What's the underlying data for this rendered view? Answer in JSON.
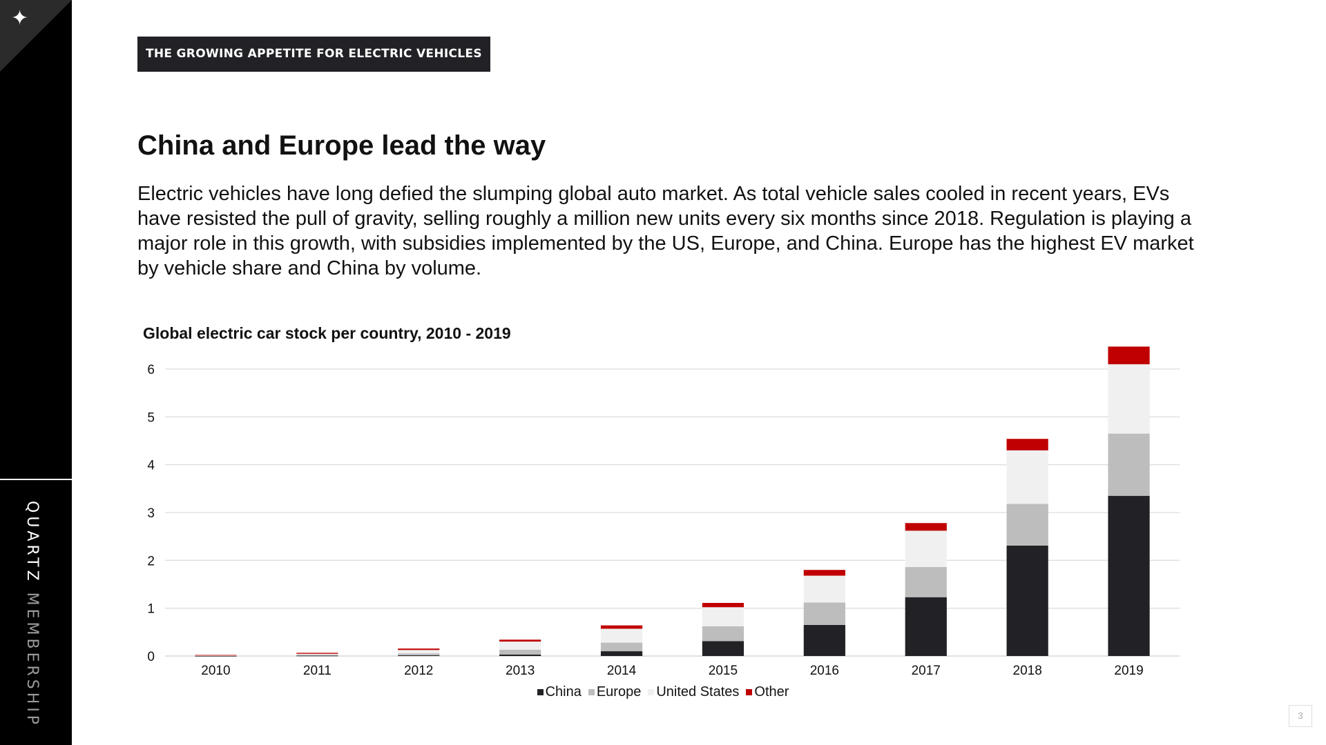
{
  "brand": {
    "logo_icon": "sparkle-icon",
    "name_bold": "QUARTZ",
    "name_light": " MEMBERSHIP"
  },
  "section_tag": "THE GROWING APPETITE FOR ELECTRIC VEHICLES",
  "headline": "China and Europe lead the way",
  "body": "Electric vehicles have long defied the slumping global auto market. As total vehicle sales cooled in recent years, EVs have resisted the pull of gravity, selling roughly a million new units every six months since 2018. Regulation is playing a major role in this growth, with subsidies implemented by the US, Europe, and China. Europe has the highest EV market by vehicle share and China by volume.",
  "page_number": "3",
  "chart_data": {
    "type": "bar",
    "stacked": true,
    "title": "Global electric car stock per country, 2010 - 2019",
    "xlabel": "",
    "ylabel": "",
    "categories": [
      "2010",
      "2011",
      "2012",
      "2013",
      "2014",
      "2015",
      "2016",
      "2017",
      "2018",
      "2019"
    ],
    "ylim": [
      0,
      6
    ],
    "yticks": [
      "0",
      "1",
      "2",
      "3",
      "4",
      "5",
      "6"
    ],
    "grid": true,
    "legend_position": "bottom",
    "series": [
      {
        "name": "China",
        "color": "#222226",
        "values": [
          0.001,
          0.007,
          0.016,
          0.032,
          0.1,
          0.31,
          0.65,
          1.23,
          2.31,
          3.35
        ]
      },
      {
        "name": "Europe",
        "color": "#bdbdbd",
        "values": [
          0.01,
          0.02,
          0.04,
          0.1,
          0.18,
          0.31,
          0.47,
          0.63,
          0.87,
          1.3
        ]
      },
      {
        "name": "United States",
        "color": "#f0f0f0",
        "values": [
          0.004,
          0.02,
          0.07,
          0.17,
          0.29,
          0.4,
          0.56,
          0.76,
          1.12,
          1.45
        ]
      },
      {
        "name": "Other",
        "color": "#c00000",
        "values": [
          0.007,
          0.02,
          0.03,
          0.04,
          0.07,
          0.09,
          0.12,
          0.16,
          0.24,
          0.37
        ]
      }
    ]
  }
}
